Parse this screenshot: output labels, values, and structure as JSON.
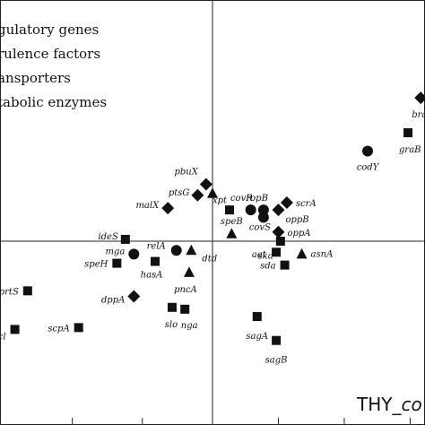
{
  "chart_data": {
    "type": "scatter",
    "title": "",
    "corner_label": {
      "prefix": "THY_",
      "italic_part": "co"
    },
    "legend": [
      {
        "text": "gulatory genes",
        "shape": "circle"
      },
      {
        "text": "rulence factors",
        "shape": "triangle"
      },
      {
        "text": "ansporters",
        "shape": "square"
      },
      {
        "text": "tabolic enzymes",
        "shape": "diamond"
      }
    ],
    "xlim": [
      -1.0,
      1.0
    ],
    "ylim": [
      -1.0,
      1.0
    ],
    "axes": "crossing at origin",
    "grid": false,
    "points": [
      {
        "label": "bra",
        "shape": "diamond",
        "x": 0.98,
        "y": 0.78
      },
      {
        "label": "graB",
        "shape": "square",
        "x": 0.92,
        "y": 0.59
      },
      {
        "label": "codY",
        "shape": "circle",
        "x": 0.73,
        "y": 0.49
      },
      {
        "label": "pbuX",
        "shape": "diamond",
        "x": -0.03,
        "y": 0.31
      },
      {
        "label": "xpt",
        "shape": "triangle",
        "x": 0.0,
        "y": 0.26
      },
      {
        "label": "ptsG",
        "shape": "diamond",
        "x": -0.07,
        "y": 0.25
      },
      {
        "label": "malX",
        "shape": "diamond",
        "x": -0.21,
        "y": 0.18
      },
      {
        "label": "covR",
        "shape": "square",
        "x": 0.08,
        "y": 0.17
      },
      {
        "label": "ropB",
        "shape": "circle",
        "x": 0.18,
        "y": 0.17
      },
      {
        "label": "scrA",
        "shape": "diamond",
        "x": 0.35,
        "y": 0.21
      },
      {
        "label": "oppB",
        "shape": "diamond",
        "x": 0.31,
        "y": 0.17
      },
      {
        "label": "",
        "shape": "circle",
        "x": 0.24,
        "y": 0.17
      },
      {
        "label": "covS",
        "shape": "circle",
        "x": 0.24,
        "y": 0.13
      },
      {
        "label": "speB",
        "shape": "triangle",
        "x": 0.09,
        "y": 0.04
      },
      {
        "label": "oppA",
        "shape": "diamond",
        "x": 0.31,
        "y": 0.05
      },
      {
        "label": "ideS",
        "shape": "square",
        "x": -0.41,
        "y": 0.01
      },
      {
        "label": "aat",
        "shape": "square",
        "x": 0.32,
        "y": 0.0
      },
      {
        "label": "mga",
        "shape": "circle",
        "x": -0.37,
        "y": -0.07
      },
      {
        "label": "relA",
        "shape": "circle",
        "x": -0.17,
        "y": -0.05
      },
      {
        "label": "dtd",
        "shape": "triangle",
        "x": -0.1,
        "y": -0.05
      },
      {
        "label": "ska",
        "shape": "square",
        "x": 0.3,
        "y": -0.06
      },
      {
        "label": "asnA",
        "shape": "triangle",
        "x": 0.42,
        "y": -0.07
      },
      {
        "label": "speH",
        "shape": "square",
        "x": -0.45,
        "y": -0.12
      },
      {
        "label": "hasA",
        "shape": "square",
        "x": -0.27,
        "y": -0.11
      },
      {
        "label": "sda",
        "shape": "square",
        "x": 0.34,
        "y": -0.13
      },
      {
        "label": "pncA",
        "shape": "triangle",
        "x": -0.11,
        "y": -0.17
      },
      {
        "label": "prtS",
        "shape": "square",
        "x": -0.87,
        "y": -0.27
      },
      {
        "label": "dppA",
        "shape": "diamond",
        "x": -0.37,
        "y": -0.3
      },
      {
        "label": "slo",
        "shape": "square",
        "x": -0.19,
        "y": -0.36
      },
      {
        "label": "nga",
        "shape": "square",
        "x": -0.13,
        "y": -0.37
      },
      {
        "label": "sagA",
        "shape": "square",
        "x": 0.21,
        "y": -0.41
      },
      {
        "label": "cl",
        "shape": "square",
        "x": -0.93,
        "y": -0.48
      },
      {
        "label": "scpA",
        "shape": "square",
        "x": -0.63,
        "y": -0.47
      },
      {
        "label": "sagB",
        "shape": "square",
        "x": 0.3,
        "y": -0.54
      }
    ]
  }
}
